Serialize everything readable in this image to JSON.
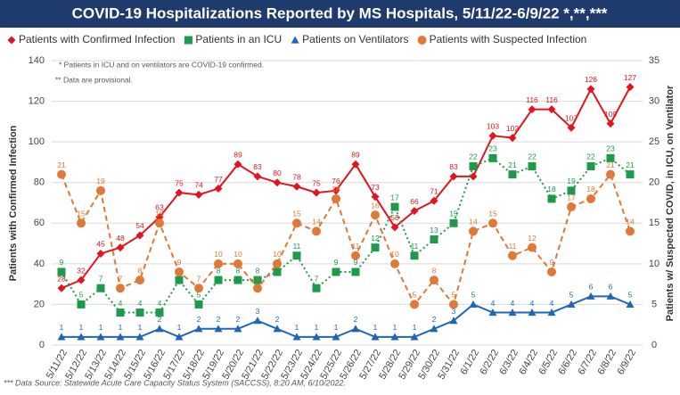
{
  "chart_data": {
    "type": "line",
    "title": "COVID-19 Hospitalizations Reported by MS Hospitals, 5/11/22-6/9/22 *,**,***",
    "annotations": [
      "* Patients in ICU and on ventilators are COVID-19 confirmed.",
      "** Data are provisional."
    ],
    "footnote": "*** Data Source: Statewide Acute Care Capacity Status System (SACCSS), 8:20 AM, 6/10/2022.",
    "ylabel": "Patients with Confirmed Infection",
    "y2label": "Patients w/ Suspected COVID, in ICU, on Ventilator",
    "categories": [
      "5/11/22",
      "5/12/22",
      "5/13/22",
      "5/14/22",
      "5/15/22",
      "5/16/22",
      "5/17/22",
      "5/18/22",
      "5/19/22",
      "5/20/22",
      "5/21/22",
      "5/22/22",
      "5/23/22",
      "5/24/22",
      "5/25/22",
      "5/26/22",
      "5/27/22",
      "5/28/22",
      "5/29/22",
      "5/30/22",
      "5/31/22",
      "6/1/22",
      "6/2/22",
      "6/3/22",
      "6/4/22",
      "6/5/22",
      "6/6/22",
      "6/7/22",
      "6/8/22",
      "6/9/22"
    ],
    "ylim": [
      0,
      140
    ],
    "yticks": [
      0,
      20,
      40,
      60,
      80,
      100,
      120,
      140
    ],
    "y2lim": [
      0,
      35
    ],
    "y2ticks": [
      0,
      5,
      10,
      15,
      20,
      25,
      30,
      35
    ],
    "grid": true,
    "series": [
      {
        "name": "Patients with Confirmed Infection",
        "color": "#e3141e",
        "marker": "diamond",
        "dash": "solid",
        "axis": "y",
        "values": [
          28,
          32,
          45,
          48,
          54,
          63,
          75,
          74,
          77,
          89,
          83,
          80,
          78,
          75,
          76,
          89,
          73,
          58,
          66,
          71,
          83,
          83,
          103,
          102,
          116,
          116,
          107,
          126,
          109,
          127
        ]
      },
      {
        "name": "Patients in an ICU",
        "color": "#1e9b4a",
        "marker": "square",
        "dash": "dotted",
        "axis": "y2",
        "values": [
          9,
          5,
          7,
          4,
          4,
          4,
          8,
          5,
          8,
          8,
          8,
          9,
          11,
          7,
          9,
          9,
          12,
          17,
          11,
          13,
          15,
          22,
          23,
          21,
          22,
          18,
          19,
          22,
          23,
          21
        ]
      },
      {
        "name": "Patients on Ventilators",
        "color": "#2066b8",
        "marker": "triangle",
        "dash": "solid",
        "axis": "y2",
        "values": [
          1,
          1,
          1,
          1,
          1,
          2,
          1,
          2,
          2,
          2,
          3,
          2,
          1,
          1,
          1,
          2,
          1,
          1,
          1,
          2,
          3,
          5,
          4,
          4,
          4,
          4,
          5,
          6,
          6,
          5
        ]
      },
      {
        "name": "Patients with Suspected Infection",
        "color": "#e07838",
        "marker": "circle",
        "dash": "dashed",
        "axis": "y2",
        "values": [
          21,
          15,
          19,
          7,
          8,
          15,
          9,
          7,
          10,
          10,
          7,
          10,
          15,
          14,
          18,
          11,
          16,
          10,
          5,
          8,
          5,
          14,
          15,
          11,
          12,
          9,
          17,
          18,
          21,
          14
        ]
      }
    ]
  }
}
